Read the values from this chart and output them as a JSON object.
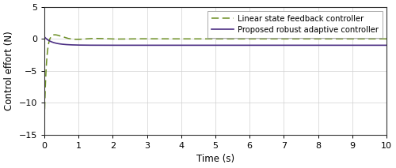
{
  "title": "",
  "xlabel": "Time (s)",
  "ylabel": "Control effort (N)",
  "xlim": [
    0,
    10
  ],
  "ylim": [
    -15,
    5
  ],
  "yticks": [
    -15,
    -10,
    -5,
    0,
    5
  ],
  "xticks": [
    0,
    1,
    2,
    3,
    4,
    5,
    6,
    7,
    8,
    9,
    10
  ],
  "line1_color": "#4b2e83",
  "line2_color": "#6b8e23",
  "line1_label": "Proposed robust adaptive controller",
  "line2_label": "Linear state feedback controller",
  "background_color": "#ffffff",
  "grid_color": "#d0d0d0",
  "figsize": [
    5.0,
    2.13
  ],
  "dpi": 100
}
